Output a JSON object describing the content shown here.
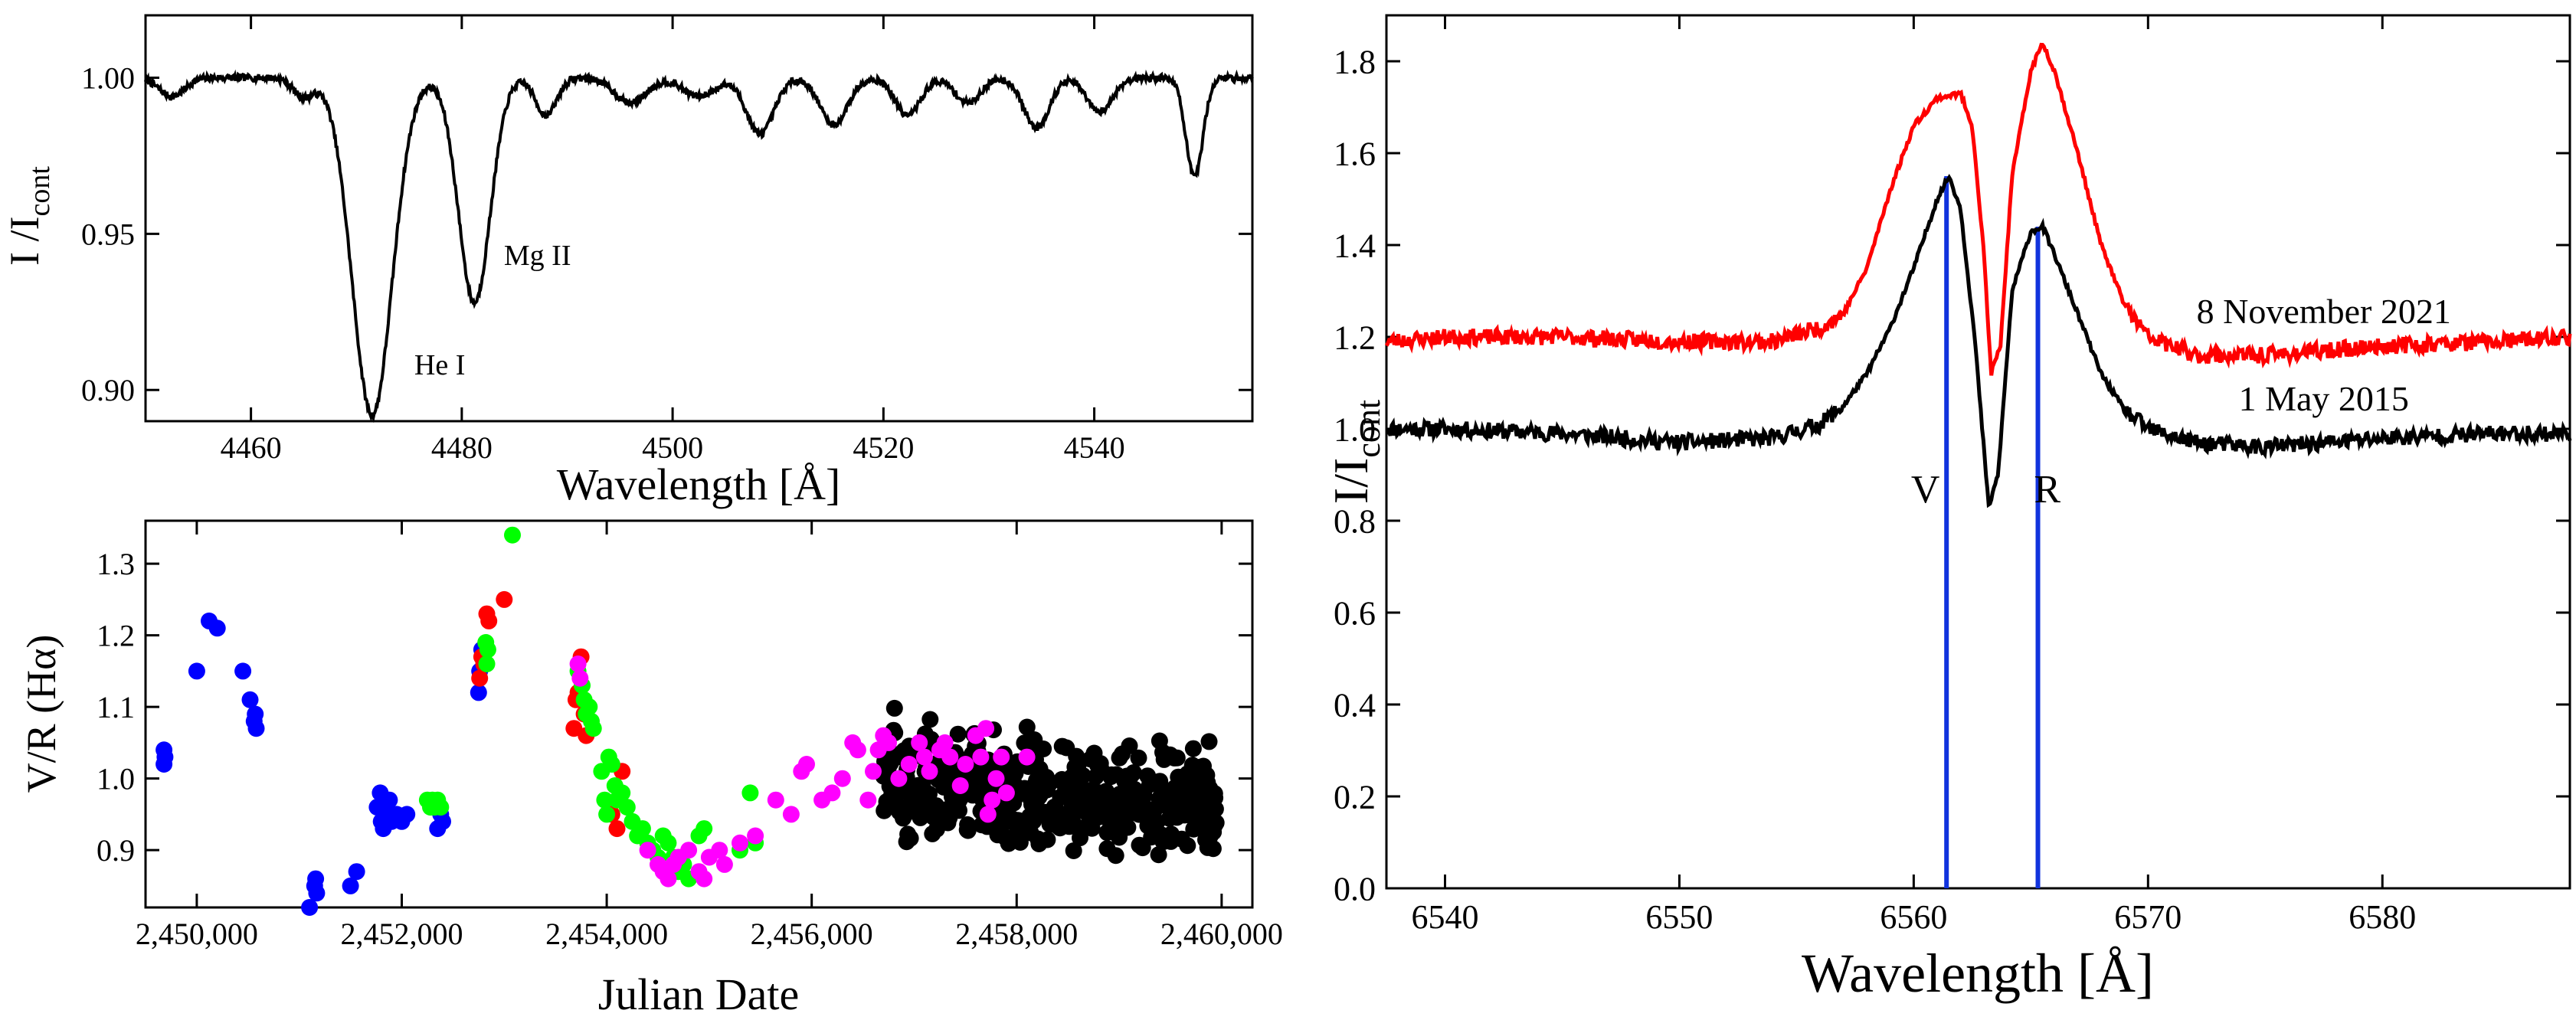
{
  "colors": {
    "black": "#000000",
    "red": "#ff0000",
    "blue": "#0000ff",
    "green": "#00ff00",
    "magenta": "#ff00ff",
    "vr_line": "#1133dd"
  },
  "chart_data": [
    {
      "id": "top-left",
      "type": "line",
      "title": "",
      "xlabel": "Wavelength [Å]",
      "ylabel_main": "I /I",
      "ylabel_sub": "cont",
      "xlim": [
        4450,
        4555
      ],
      "ylim": [
        0.89,
        1.02
      ],
      "xticks": [
        4460,
        4480,
        4500,
        4520,
        4540
      ],
      "yticks": [
        0.9,
        0.95,
        1.0
      ],
      "ytick_labels": [
        "0.90",
        "0.95",
        "1.00"
      ],
      "annotations": [
        {
          "text": "He I",
          "x": 4475.5,
          "y": 0.905
        },
        {
          "text": "Mg II",
          "x": 4484,
          "y": 0.94
        }
      ],
      "lines": [
        {
          "center": 4471.5,
          "depth": 0.108,
          "width": 1.9
        },
        {
          "center": 4481.2,
          "depth": 0.072,
          "width": 1.5
        },
        {
          "center": 4488.0,
          "depth": 0.012,
          "width": 1.0
        },
        {
          "center": 4496.0,
          "depth": 0.008,
          "width": 1.5
        },
        {
          "center": 4502.5,
          "depth": 0.006,
          "width": 1.5
        },
        {
          "center": 4508.3,
          "depth": 0.018,
          "width": 1.3
        },
        {
          "center": 4515.3,
          "depth": 0.015,
          "width": 1.3
        },
        {
          "center": 4522.3,
          "depth": 0.012,
          "width": 1.2
        },
        {
          "center": 4528.0,
          "depth": 0.008,
          "width": 1.2
        },
        {
          "center": 4534.5,
          "depth": 0.016,
          "width": 1.2
        },
        {
          "center": 4540.5,
          "depth": 0.011,
          "width": 1.2
        },
        {
          "center": 4549.5,
          "depth": 0.032,
          "width": 0.8
        },
        {
          "center": 4452.5,
          "depth": 0.006,
          "width": 1.2
        },
        {
          "center": 4465.0,
          "depth": 0.006,
          "width": 1.0
        }
      ]
    },
    {
      "id": "bottom-left",
      "type": "scatter",
      "title": "",
      "xlabel": "Julian Date",
      "ylabel": "V/R (Hα)",
      "xlim": [
        2449500,
        2460300
      ],
      "ylim": [
        0.82,
        1.36
      ],
      "xticks": [
        2450000,
        2452000,
        2454000,
        2456000,
        2458000,
        2460000
      ],
      "xtick_labels": [
        "2,450,000",
        "2,452,000",
        "2,454,000",
        "2,456,000",
        "2,458,000",
        "2,460,000"
      ],
      "yticks": [
        0.9,
        1.0,
        1.1,
        1.2,
        1.3
      ],
      "ytick_labels": [
        "0.9",
        "1.0",
        "1.1",
        "1.2",
        "1.3"
      ],
      "series": [
        {
          "name": "blue",
          "color": "#0000ff",
          "points": [
            [
              2449680,
              1.04
            ],
            [
              2449680,
              1.02
            ],
            [
              2449690,
              1.03
            ],
            [
              2450000,
              1.15
            ],
            [
              2450120,
              1.22
            ],
            [
              2450200,
              1.21
            ],
            [
              2450450,
              1.15
            ],
            [
              2450520,
              1.11
            ],
            [
              2450560,
              1.08
            ],
            [
              2450570,
              1.09
            ],
            [
              2450580,
              1.07
            ],
            [
              2451100,
              0.82
            ],
            [
              2451150,
              0.85
            ],
            [
              2451160,
              0.86
            ],
            [
              2451170,
              0.84
            ],
            [
              2451500,
              0.85
            ],
            [
              2451560,
              0.87
            ],
            [
              2451760,
              0.96
            ],
            [
              2451790,
              0.98
            ],
            [
              2451800,
              0.94
            ],
            [
              2451820,
              0.93
            ],
            [
              2451850,
              0.95
            ],
            [
              2451880,
              0.97
            ],
            [
              2451900,
              0.94
            ],
            [
              2451950,
              0.95
            ],
            [
              2452000,
              0.94
            ],
            [
              2452050,
              0.95
            ],
            [
              2452350,
              0.93
            ],
            [
              2452380,
              0.95
            ],
            [
              2452400,
              0.94
            ],
            [
              2452750,
              1.12
            ],
            [
              2452760,
              1.15
            ],
            [
              2452780,
              1.18
            ]
          ]
        },
        {
          "name": "red",
          "color": "#ff0000",
          "points": [
            [
              2452760,
              1.14
            ],
            [
              2452780,
              1.17
            ],
            [
              2452800,
              1.16
            ],
            [
              2452830,
              1.23
            ],
            [
              2452850,
              1.22
            ],
            [
              2453000,
              1.25
            ],
            [
              2453680,
              1.07
            ],
            [
              2453700,
              1.11
            ],
            [
              2453720,
              1.12
            ],
            [
              2453750,
              1.17
            ],
            [
              2453780,
              1.09
            ],
            [
              2453800,
              1.06
            ],
            [
              2454050,
              0.95
            ],
            [
              2454100,
              0.93
            ],
            [
              2454150,
              1.01
            ]
          ]
        },
        {
          "name": "green",
          "color": "#00ff00",
          "points": [
            [
              2452250,
              0.97
            ],
            [
              2452280,
              0.96
            ],
            [
              2452300,
              0.97
            ],
            [
              2452320,
              0.96
            ],
            [
              2452350,
              0.97
            ],
            [
              2452380,
              0.96
            ],
            [
              2452820,
              1.19
            ],
            [
              2452830,
              1.16
            ],
            [
              2452840,
              1.18
            ],
            [
              2453080,
              1.34
            ],
            [
              2453720,
              1.15
            ],
            [
              2453760,
              1.13
            ],
            [
              2453780,
              1.11
            ],
            [
              2453800,
              1.09
            ],
            [
              2453830,
              1.1
            ],
            [
              2453850,
              1.08
            ],
            [
              2453870,
              1.07
            ],
            [
              2453950,
              1.01
            ],
            [
              2453980,
              0.97
            ],
            [
              2454000,
              0.95
            ],
            [
              2454020,
              1.03
            ],
            [
              2454050,
              1.02
            ],
            [
              2454080,
              0.99
            ],
            [
              2454100,
              0.97
            ],
            [
              2454150,
              0.98
            ],
            [
              2454200,
              0.96
            ],
            [
              2454250,
              0.94
            ],
            [
              2454300,
              0.92
            ],
            [
              2454350,
              0.93
            ],
            [
              2454400,
              0.91
            ],
            [
              2454450,
              0.9
            ],
            [
              2454500,
              0.89
            ],
            [
              2454550,
              0.92
            ],
            [
              2454600,
              0.91
            ],
            [
              2454650,
              0.89
            ],
            [
              2454700,
              0.87
            ],
            [
              2454750,
              0.88
            ],
            [
              2454800,
              0.86
            ],
            [
              2454900,
              0.92
            ],
            [
              2454950,
              0.93
            ],
            [
              2455400,
              0.98
            ],
            [
              2455450,
              0.91
            ],
            [
              2455300,
              0.9
            ]
          ]
        },
        {
          "name": "magenta",
          "color": "#ff00ff",
          "points": [
            [
              2453720,
              1.16
            ],
            [
              2453740,
              1.14
            ],
            [
              2454400,
              0.9
            ],
            [
              2454500,
              0.88
            ],
            [
              2454550,
              0.87
            ],
            [
              2454600,
              0.86
            ],
            [
              2454650,
              0.88
            ],
            [
              2454700,
              0.89
            ],
            [
              2454800,
              0.9
            ],
            [
              2454900,
              0.87
            ],
            [
              2454950,
              0.86
            ],
            [
              2455000,
              0.89
            ],
            [
              2455100,
              0.9
            ],
            [
              2455150,
              0.88
            ],
            [
              2455300,
              0.91
            ],
            [
              2455450,
              0.92
            ],
            [
              2455650,
              0.97
            ],
            [
              2455800,
              0.95
            ],
            [
              2455900,
              1.01
            ],
            [
              2455950,
              1.02
            ],
            [
              2456100,
              0.97
            ],
            [
              2456200,
              0.98
            ],
            [
              2456300,
              1.0
            ],
            [
              2456400,
              1.05
            ],
            [
              2456450,
              1.04
            ],
            [
              2456550,
              0.97
            ],
            [
              2456600,
              1.01
            ],
            [
              2456650,
              1.04
            ],
            [
              2456700,
              1.06
            ],
            [
              2456750,
              1.05
            ],
            [
              2456850,
              1.0
            ],
            [
              2456950,
              1.02
            ],
            [
              2457050,
              1.05
            ],
            [
              2457100,
              1.03
            ],
            [
              2457150,
              1.01
            ],
            [
              2457250,
              1.04
            ],
            [
              2457300,
              1.05
            ],
            [
              2457350,
              1.03
            ],
            [
              2457450,
              0.99
            ],
            [
              2457500,
              1.02
            ],
            [
              2457600,
              1.06
            ],
            [
              2457650,
              1.03
            ],
            [
              2457700,
              1.07
            ],
            [
              2457720,
              0.95
            ],
            [
              2457760,
              0.97
            ],
            [
              2457800,
              1.0
            ],
            [
              2457850,
              1.03
            ],
            [
              2457900,
              0.98
            ],
            [
              2458100,
              1.03
            ]
          ]
        },
        {
          "name": "black",
          "color": "#000000",
          "cloud": {
            "x_start": 2456700,
            "x_end": 2459950,
            "y_center": 0.99,
            "y_end_center": 0.96,
            "spread": 0.085,
            "count": 420
          }
        }
      ]
    },
    {
      "id": "right",
      "type": "line",
      "title": "",
      "xlabel": "Wavelength [Å]",
      "ylabel_main": "I/I",
      "ylabel_sub": "cont",
      "xlim": [
        6537.5,
        6588
      ],
      "ylim": [
        0.0,
        1.9
      ],
      "xticks": [
        6540,
        6550,
        6560,
        6570,
        6580
      ],
      "yticks": [
        0.0,
        0.2,
        0.4,
        0.6,
        0.8,
        1.0,
        1.2,
        1.4,
        1.6,
        1.8
      ],
      "ytick_labels": [
        "0.0",
        "0.2",
        "0.4",
        "0.6",
        "0.8",
        "1.0",
        "1.2",
        "1.4",
        "1.6",
        "1.8"
      ],
      "annotations": [
        {
          "text": "8 November 2021",
          "color": "#ff0000",
          "x": 6577.5,
          "y": 1.23
        },
        {
          "text": "1 May 2015",
          "color": "#000000",
          "x": 6577.5,
          "y": 1.04
        },
        {
          "text": "V",
          "color": "#000000",
          "x": 6560.5,
          "y": 0.84
        },
        {
          "text": "R",
          "color": "#000000",
          "x": 6565.7,
          "y": 0.84
        }
      ],
      "vertical_lines": [
        {
          "name": "V",
          "x": 6561.4,
          "y_top": 1.55
        },
        {
          "name": "R",
          "x": 6565.3,
          "y_top": 1.44
        }
      ],
      "series": [
        {
          "name": "8 November 2021",
          "color": "#ff0000",
          "points": [
            [
              6537.5,
              1.19
            ],
            [
              6540,
              1.2
            ],
            [
              6545,
              1.2
            ],
            [
              6550,
              1.19
            ],
            [
              6554,
              1.19
            ],
            [
              6556,
              1.22
            ],
            [
              6557,
              1.25
            ],
            [
              6558,
              1.35
            ],
            [
              6559,
              1.52
            ],
            [
              6560,
              1.66
            ],
            [
              6561,
              1.72
            ],
            [
              6562,
              1.73
            ],
            [
              6562.5,
              1.66
            ],
            [
              6563,
              1.38
            ],
            [
              6563.3,
              1.12
            ],
            [
              6563.7,
              1.18
            ],
            [
              6564.2,
              1.55
            ],
            [
              6565,
              1.78
            ],
            [
              6565.5,
              1.84
            ],
            [
              6566,
              1.78
            ],
            [
              6567,
              1.6
            ],
            [
              6568,
              1.4
            ],
            [
              6569,
              1.27
            ],
            [
              6570,
              1.2
            ],
            [
              6572,
              1.16
            ],
            [
              6575,
              1.16
            ],
            [
              6580,
              1.18
            ],
            [
              6585,
              1.19
            ],
            [
              6588,
              1.2
            ]
          ]
        },
        {
          "name": "1 May 2015",
          "color": "#000000",
          "points": [
            [
              6537.5,
              1.0
            ],
            [
              6540,
              1.0
            ],
            [
              6545,
              0.99
            ],
            [
              6550,
              0.97
            ],
            [
              6554,
              0.98
            ],
            [
              6556,
              1.01
            ],
            [
              6557,
              1.05
            ],
            [
              6558,
              1.12
            ],
            [
              6559,
              1.22
            ],
            [
              6560,
              1.35
            ],
            [
              6561,
              1.5
            ],
            [
              6561.5,
              1.55
            ],
            [
              6562,
              1.48
            ],
            [
              6562.6,
              1.2
            ],
            [
              6563.2,
              0.83
            ],
            [
              6563.6,
              0.9
            ],
            [
              6564.2,
              1.3
            ],
            [
              6565,
              1.43
            ],
            [
              6565.5,
              1.44
            ],
            [
              6566,
              1.38
            ],
            [
              6567,
              1.25
            ],
            [
              6568,
              1.12
            ],
            [
              6569,
              1.04
            ],
            [
              6570,
              1.0
            ],
            [
              6572,
              0.97
            ],
            [
              6575,
              0.96
            ],
            [
              6580,
              0.98
            ],
            [
              6585,
              0.99
            ],
            [
              6588,
              0.99
            ]
          ]
        }
      ]
    }
  ]
}
